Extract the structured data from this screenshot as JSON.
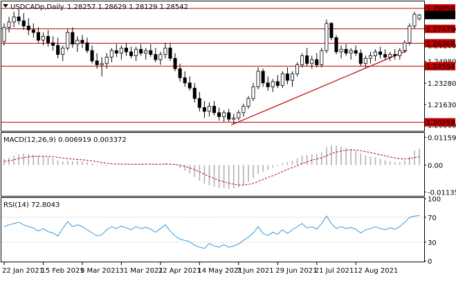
{
  "header": {
    "symbol": "USDCADp,Daily",
    "ohlc": "1.28257 1.28629 1.28129 1.28542"
  },
  "colors": {
    "background": "#ffffff",
    "candle": "#000000",
    "support_resistance": "#c00000",
    "trendline": "#c00000",
    "price_tag": "#c00000",
    "current_price_tag": "#000000",
    "macd_histogram": "#b0b0b0",
    "macd_signal": "#c00000",
    "rsi_line": "#3399dd"
  },
  "chart_data": [
    {
      "type": "candlestick",
      "title": "USDCADp,Daily",
      "ylim": [
        1.196,
        1.296
      ],
      "y_ticks": [
        "1.27480",
        "1.26200",
        "1.24980",
        "1.23280",
        "1.21630",
        "1.20060"
      ],
      "x_ticks": [
        "22 Jan 2021",
        "15 Feb 2021",
        "9 Mar 2021",
        "31 Mar 2021",
        "22 Apr 2021",
        "14 May 2021",
        "7 Jun 2021",
        "29 Jun 2021",
        "21 Jul 2021",
        "12 Aug 2021"
      ],
      "last_price": "1.28542",
      "horizontal_levels": [
        {
          "label": "1.29058",
          "value": 1.29058
        },
        {
          "label": "1.27479",
          "value": 1.27479
        },
        {
          "label": "1.26368",
          "value": 1.26368
        },
        {
          "label": "1.24594",
          "value": 1.24594
        },
        {
          "label": "1.20259",
          "value": 1.20259
        }
      ],
      "trendline": {
        "start": [
          46.5,
          1.2005
        ],
        "end": [
          82.5,
          1.258
        ]
      },
      "candles": [
        {
          "o": 1.265,
          "h": 1.279,
          "l": 1.262,
          "c": 1.276
        },
        {
          "o": 1.276,
          "h": 1.284,
          "l": 1.272,
          "c": 1.28
        },
        {
          "o": 1.28,
          "h": 1.288,
          "l": 1.276,
          "c": 1.284
        },
        {
          "o": 1.284,
          "h": 1.29,
          "l": 1.278,
          "c": 1.281
        },
        {
          "o": 1.281,
          "h": 1.287,
          "l": 1.274,
          "c": 1.277
        },
        {
          "o": 1.277,
          "h": 1.283,
          "l": 1.27,
          "c": 1.274
        },
        {
          "o": 1.274,
          "h": 1.279,
          "l": 1.268,
          "c": 1.272
        },
        {
          "o": 1.272,
          "h": 1.276,
          "l": 1.264,
          "c": 1.266
        },
        {
          "o": 1.266,
          "h": 1.272,
          "l": 1.262,
          "c": 1.269
        },
        {
          "o": 1.269,
          "h": 1.274,
          "l": 1.261,
          "c": 1.264
        },
        {
          "o": 1.264,
          "h": 1.269,
          "l": 1.258,
          "c": 1.262
        },
        {
          "o": 1.262,
          "h": 1.268,
          "l": 1.252,
          "c": 1.255
        },
        {
          "o": 1.255,
          "h": 1.262,
          "l": 1.25,
          "c": 1.26
        },
        {
          "o": 1.26,
          "h": 1.275,
          "l": 1.258,
          "c": 1.272
        },
        {
          "o": 1.272,
          "h": 1.276,
          "l": 1.26,
          "c": 1.263
        },
        {
          "o": 1.263,
          "h": 1.269,
          "l": 1.257,
          "c": 1.266
        },
        {
          "o": 1.266,
          "h": 1.27,
          "l": 1.26,
          "c": 1.264
        },
        {
          "o": 1.264,
          "h": 1.268,
          "l": 1.256,
          "c": 1.258
        },
        {
          "o": 1.258,
          "h": 1.262,
          "l": 1.248,
          "c": 1.25
        },
        {
          "o": 1.25,
          "h": 1.256,
          "l": 1.244,
          "c": 1.247
        },
        {
          "o": 1.247,
          "h": 1.253,
          "l": 1.238,
          "c": 1.248
        },
        {
          "o": 1.248,
          "h": 1.256,
          "l": 1.244,
          "c": 1.253
        },
        {
          "o": 1.253,
          "h": 1.26,
          "l": 1.249,
          "c": 1.258
        },
        {
          "o": 1.258,
          "h": 1.263,
          "l": 1.253,
          "c": 1.256
        },
        {
          "o": 1.256,
          "h": 1.262,
          "l": 1.251,
          "c": 1.26
        },
        {
          "o": 1.26,
          "h": 1.264,
          "l": 1.254,
          "c": 1.257
        },
        {
          "o": 1.257,
          "h": 1.261,
          "l": 1.252,
          "c": 1.254
        },
        {
          "o": 1.254,
          "h": 1.261,
          "l": 1.25,
          "c": 1.259
        },
        {
          "o": 1.259,
          "h": 1.263,
          "l": 1.254,
          "c": 1.256
        },
        {
          "o": 1.256,
          "h": 1.26,
          "l": 1.251,
          "c": 1.258
        },
        {
          "o": 1.258,
          "h": 1.263,
          "l": 1.253,
          "c": 1.255
        },
        {
          "o": 1.255,
          "h": 1.26,
          "l": 1.249,
          "c": 1.251
        },
        {
          "o": 1.251,
          "h": 1.257,
          "l": 1.247,
          "c": 1.255
        },
        {
          "o": 1.255,
          "h": 1.264,
          "l": 1.252,
          "c": 1.26
        },
        {
          "o": 1.26,
          "h": 1.264,
          "l": 1.25,
          "c": 1.252
        },
        {
          "o": 1.252,
          "h": 1.256,
          "l": 1.242,
          "c": 1.244
        },
        {
          "o": 1.244,
          "h": 1.248,
          "l": 1.234,
          "c": 1.237
        },
        {
          "o": 1.237,
          "h": 1.242,
          "l": 1.23,
          "c": 1.233
        },
        {
          "o": 1.233,
          "h": 1.238,
          "l": 1.227,
          "c": 1.229
        },
        {
          "o": 1.229,
          "h": 1.233,
          "l": 1.218,
          "c": 1.221
        },
        {
          "o": 1.221,
          "h": 1.226,
          "l": 1.211,
          "c": 1.214
        },
        {
          "o": 1.214,
          "h": 1.219,
          "l": 1.206,
          "c": 1.211
        },
        {
          "o": 1.211,
          "h": 1.218,
          "l": 1.207,
          "c": 1.215
        },
        {
          "o": 1.215,
          "h": 1.219,
          "l": 1.208,
          "c": 1.21
        },
        {
          "o": 1.21,
          "h": 1.214,
          "l": 1.204,
          "c": 1.207
        },
        {
          "o": 1.207,
          "h": 1.212,
          "l": 1.203,
          "c": 1.21
        },
        {
          "o": 1.21,
          "h": 1.213,
          "l": 1.203,
          "c": 1.205
        },
        {
          "o": 1.205,
          "h": 1.209,
          "l": 1.201,
          "c": 1.206
        },
        {
          "o": 1.206,
          "h": 1.212,
          "l": 1.204,
          "c": 1.21
        },
        {
          "o": 1.21,
          "h": 1.217,
          "l": 1.207,
          "c": 1.215
        },
        {
          "o": 1.215,
          "h": 1.223,
          "l": 1.213,
          "c": 1.221
        },
        {
          "o": 1.221,
          "h": 1.233,
          "l": 1.219,
          "c": 1.23
        },
        {
          "o": 1.23,
          "h": 1.245,
          "l": 1.228,
          "c": 1.242
        },
        {
          "o": 1.242,
          "h": 1.244,
          "l": 1.23,
          "c": 1.233
        },
        {
          "o": 1.233,
          "h": 1.238,
          "l": 1.227,
          "c": 1.23
        },
        {
          "o": 1.23,
          "h": 1.236,
          "l": 1.226,
          "c": 1.234
        },
        {
          "o": 1.234,
          "h": 1.239,
          "l": 1.229,
          "c": 1.231
        },
        {
          "o": 1.231,
          "h": 1.242,
          "l": 1.229,
          "c": 1.24
        },
        {
          "o": 1.24,
          "h": 1.245,
          "l": 1.232,
          "c": 1.235
        },
        {
          "o": 1.235,
          "h": 1.242,
          "l": 1.23,
          "c": 1.24
        },
        {
          "o": 1.24,
          "h": 1.249,
          "l": 1.238,
          "c": 1.247
        },
        {
          "o": 1.247,
          "h": 1.256,
          "l": 1.245,
          "c": 1.254
        },
        {
          "o": 1.254,
          "h": 1.26,
          "l": 1.246,
          "c": 1.248
        },
        {
          "o": 1.248,
          "h": 1.254,
          "l": 1.244,
          "c": 1.251
        },
        {
          "o": 1.251,
          "h": 1.256,
          "l": 1.245,
          "c": 1.247
        },
        {
          "o": 1.247,
          "h": 1.26,
          "l": 1.245,
          "c": 1.258
        },
        {
          "o": 1.258,
          "h": 1.282,
          "l": 1.256,
          "c": 1.279
        },
        {
          "o": 1.279,
          "h": 1.28,
          "l": 1.266,
          "c": 1.268
        },
        {
          "o": 1.268,
          "h": 1.27,
          "l": 1.255,
          "c": 1.257
        },
        {
          "o": 1.257,
          "h": 1.262,
          "l": 1.252,
          "c": 1.259
        },
        {
          "o": 1.259,
          "h": 1.263,
          "l": 1.254,
          "c": 1.256
        },
        {
          "o": 1.256,
          "h": 1.26,
          "l": 1.251,
          "c": 1.258
        },
        {
          "o": 1.258,
          "h": 1.262,
          "l": 1.254,
          "c": 1.256
        },
        {
          "o": 1.256,
          "h": 1.259,
          "l": 1.246,
          "c": 1.248
        },
        {
          "o": 1.248,
          "h": 1.254,
          "l": 1.245,
          "c": 1.252
        },
        {
          "o": 1.252,
          "h": 1.257,
          "l": 1.248,
          "c": 1.254
        },
        {
          "o": 1.254,
          "h": 1.259,
          "l": 1.25,
          "c": 1.257
        },
        {
          "o": 1.257,
          "h": 1.261,
          "l": 1.252,
          "c": 1.255
        },
        {
          "o": 1.255,
          "h": 1.259,
          "l": 1.251,
          "c": 1.253
        },
        {
          "o": 1.253,
          "h": 1.257,
          "l": 1.25,
          "c": 1.255
        },
        {
          "o": 1.255,
          "h": 1.259,
          "l": 1.251,
          "c": 1.254
        },
        {
          "o": 1.254,
          "h": 1.26,
          "l": 1.251,
          "c": 1.258
        },
        {
          "o": 1.258,
          "h": 1.266,
          "l": 1.256,
          "c": 1.264
        },
        {
          "o": 1.264,
          "h": 1.279,
          "l": 1.262,
          "c": 1.277
        },
        {
          "o": 1.277,
          "h": 1.288,
          "l": 1.275,
          "c": 1.286
        },
        {
          "o": 1.2826,
          "h": 1.2863,
          "l": 1.2813,
          "c": 1.2854
        }
      ]
    },
    {
      "type": "line",
      "title": "MACD(12,26,9) 0.006919 0.003372",
      "ylim": [
        -0.013,
        0.0135
      ],
      "y_ticks": [
        "0.011593",
        "0.00",
        "-0.011350"
      ],
      "series": [
        {
          "values": [
            0.0025,
            0.003,
            0.004,
            0.0045,
            0.0048,
            0.0046,
            0.0044,
            0.004,
            0.0037,
            0.0032,
            0.0028,
            0.002,
            0.0015,
            0.0018,
            0.0016,
            0.0017,
            0.0015,
            0.0012,
            0.0006,
            0.0002,
            -0.0003,
            -0.0003,
            -0.0001,
            0.0,
            0.0004,
            0.0003,
            0.0001,
            0.0004,
            0.0004,
            0.0005,
            0.0004,
            0.0002,
            0.0003,
            0.0006,
            0.0004,
            -0.0003,
            -0.0013,
            -0.0024,
            -0.0036,
            -0.0051,
            -0.0066,
            -0.0078,
            -0.0085,
            -0.0091,
            -0.0097,
            -0.0098,
            -0.01,
            -0.0099,
            -0.0094,
            -0.0085,
            -0.0072,
            -0.0056,
            -0.0037,
            -0.0028,
            -0.002,
            -0.0011,
            -0.0004,
            0.0008,
            0.0012,
            0.0018,
            0.0028,
            0.004,
            0.0042,
            0.0046,
            0.0044,
            0.0052,
            0.0075,
            0.0082,
            0.008,
            0.0078,
            0.0072,
            0.0068,
            0.006,
            0.0048,
            0.004,
            0.0035,
            0.0032,
            0.0026,
            0.002,
            0.0016,
            0.0012,
            0.0012,
            0.0018,
            0.0035,
            0.006,
            0.0069
          ]
        },
        {
          "values": [
            0.0015,
            0.0017,
            0.0022,
            0.0027,
            0.0031,
            0.0034,
            0.0036,
            0.0037,
            0.0037,
            0.0036,
            0.0035,
            0.0032,
            0.0029,
            0.0027,
            0.0025,
            0.0023,
            0.0022,
            0.002,
            0.0017,
            0.0014,
            0.001,
            0.0007,
            0.0005,
            0.0004,
            0.0004,
            0.0004,
            0.0003,
            0.0003,
            0.0003,
            0.0004,
            0.0004,
            0.0003,
            0.0003,
            0.0004,
            0.0004,
            0.0002,
            -0.0001,
            -0.0006,
            -0.0012,
            -0.002,
            -0.0029,
            -0.0039,
            -0.0048,
            -0.0057,
            -0.0065,
            -0.0071,
            -0.0077,
            -0.0081,
            -0.0084,
            -0.0084,
            -0.0082,
            -0.0077,
            -0.0069,
            -0.0061,
            -0.0053,
            -0.0045,
            -0.0037,
            -0.0027,
            -0.0019,
            -0.0011,
            -0.0003,
            0.0006,
            0.0013,
            0.002,
            0.0025,
            0.003,
            0.0039,
            0.0048,
            0.0054,
            0.0059,
            0.0062,
            0.0063,
            0.0063,
            0.006,
            0.0056,
            0.0052,
            0.0048,
            0.0043,
            0.0039,
            0.0034,
            0.003,
            0.0026,
            0.0025,
            0.0027,
            0.0031,
            0.0034
          ]
        }
      ]
    },
    {
      "type": "line",
      "title": "RSI(14) 72.8043",
      "ylim": [
        0,
        100
      ],
      "y_ticks": [
        "100",
        "70",
        "30",
        "0"
      ],
      "series": [
        {
          "values": [
            55,
            58,
            60,
            62,
            58,
            55,
            53,
            48,
            52,
            47,
            45,
            40,
            52,
            63,
            55,
            58,
            55,
            50,
            45,
            40,
            42,
            50,
            55,
            52,
            56,
            53,
            50,
            55,
            52,
            54,
            51,
            46,
            52,
            58,
            48,
            40,
            35,
            33,
            31,
            25,
            22,
            20,
            28,
            24,
            22,
            26,
            22,
            24,
            27,
            33,
            38,
            45,
            55,
            44,
            41,
            46,
            43,
            50,
            44,
            50,
            55,
            60,
            53,
            55,
            51,
            60,
            72,
            60,
            52,
            55,
            52,
            54,
            51,
            45,
            50,
            52,
            55,
            52,
            50,
            53,
            51,
            55,
            62,
            70,
            72,
            73
          ]
        }
      ]
    }
  ]
}
